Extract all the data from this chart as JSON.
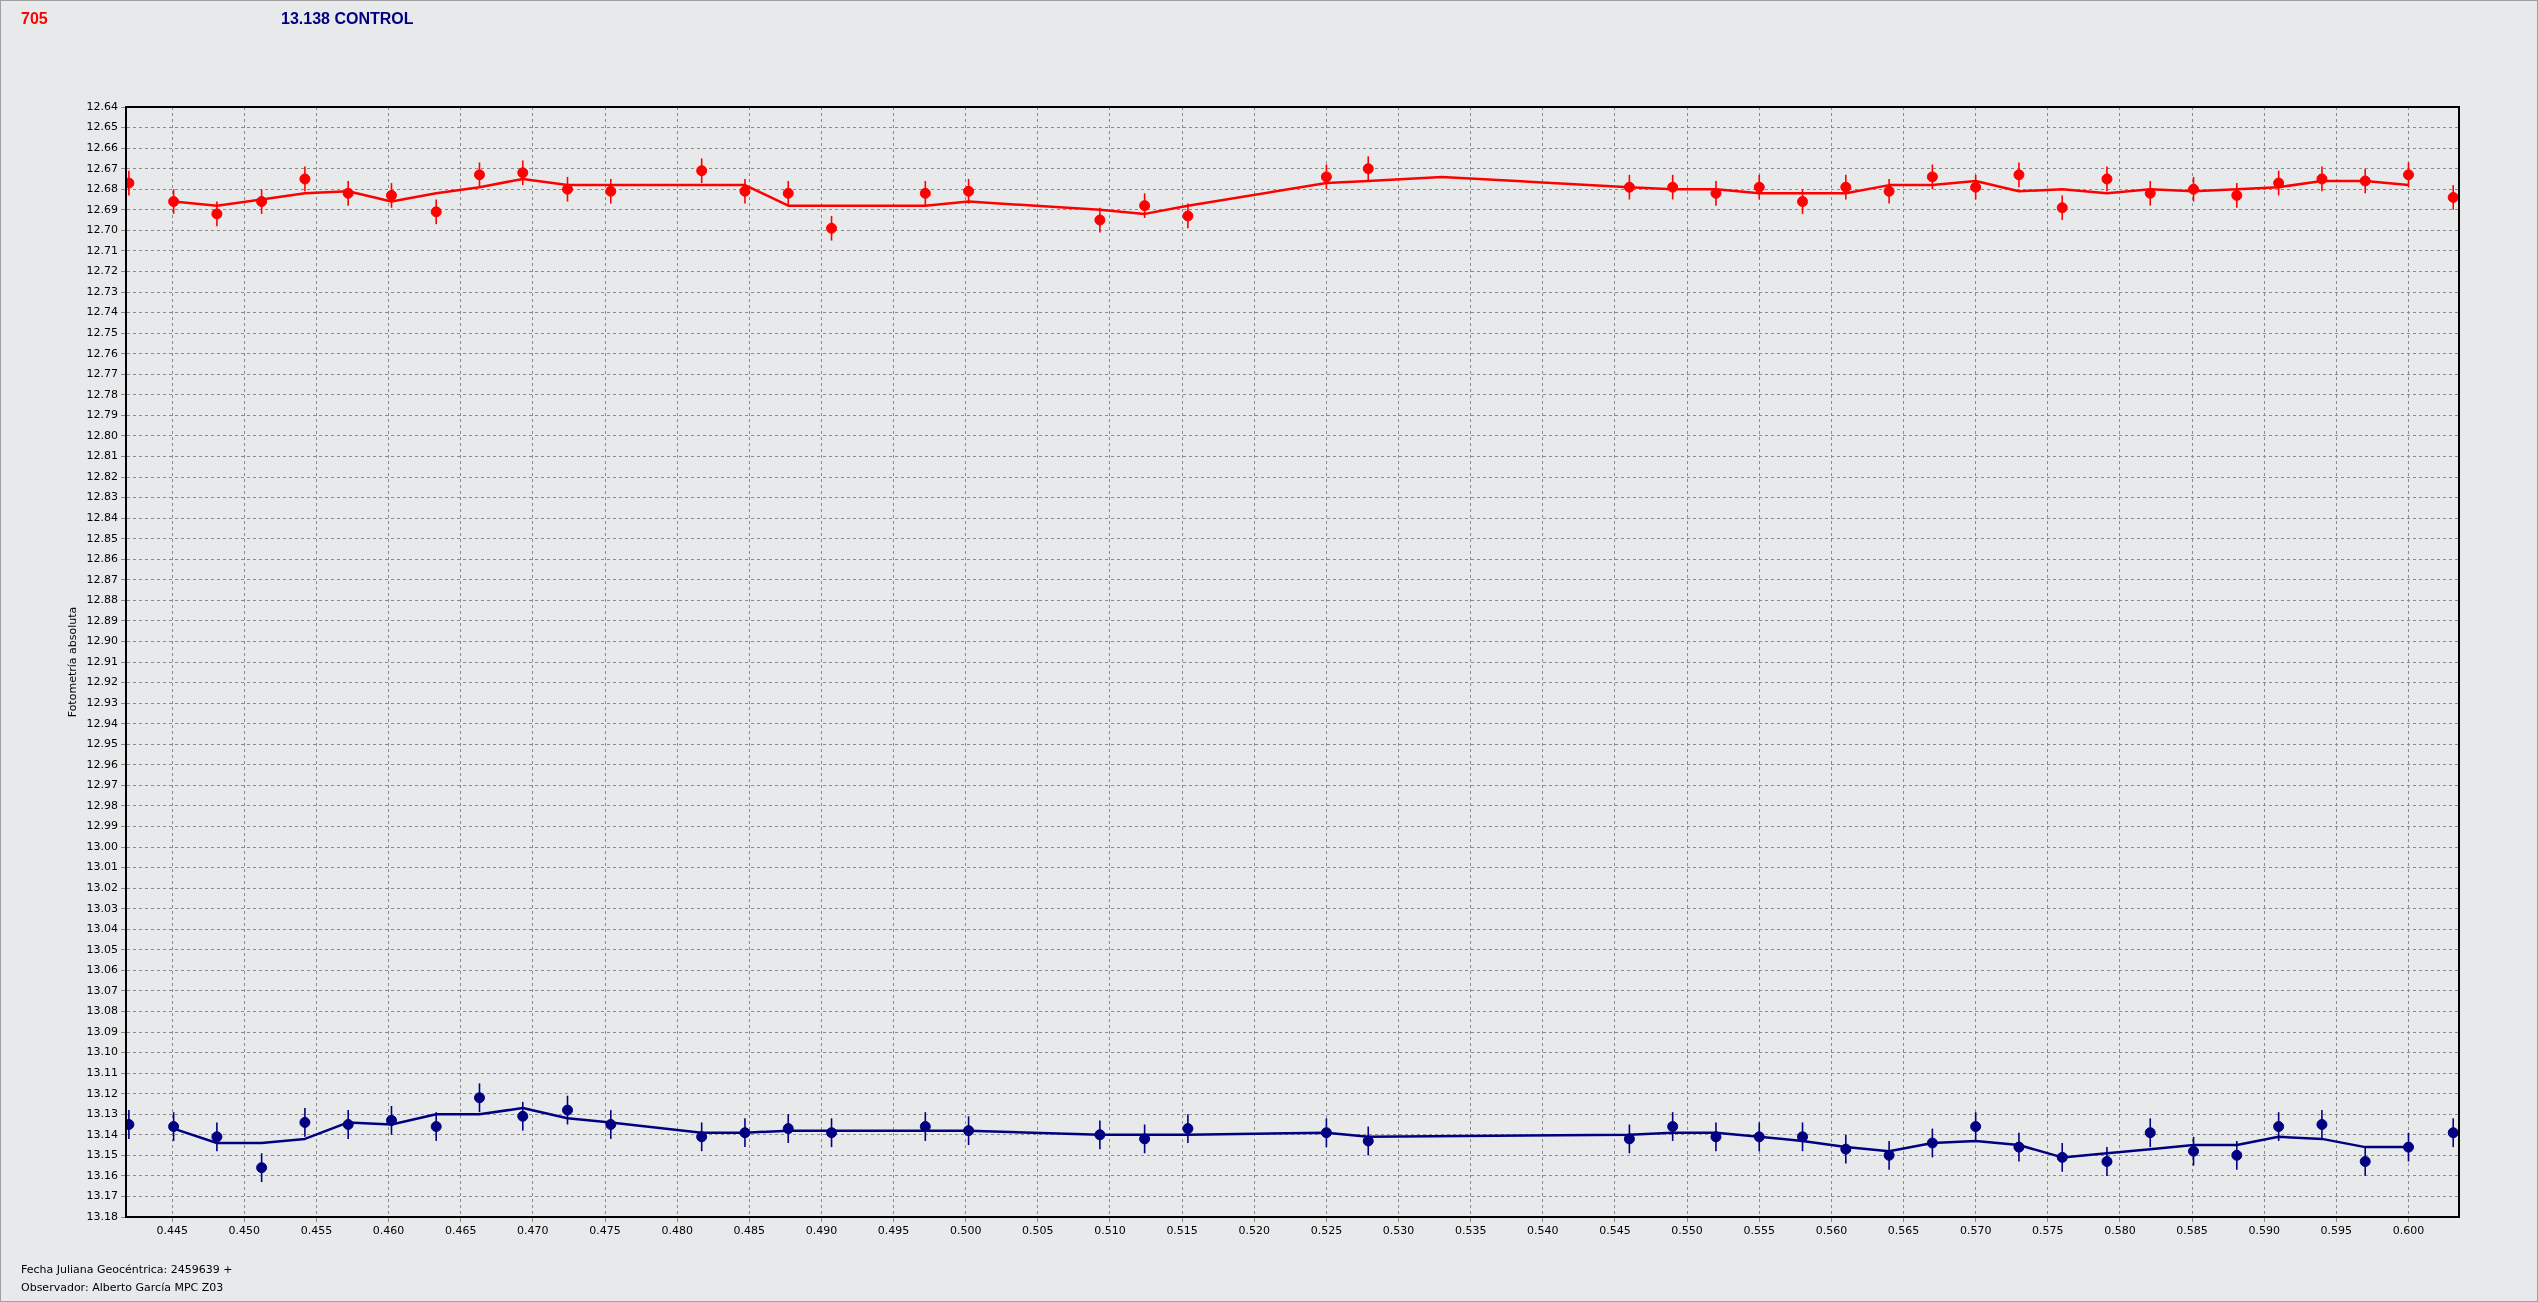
{
  "chart_data": {
    "type": "scatter",
    "ylabel": "Fotometría absoluta",
    "annotations": [
      "Fecha Juliana Geocéntrica: 2459639 +",
      "Observador: Alberto García MPC Z03"
    ],
    "xlim": [
      0.4418,
      0.6035
    ],
    "ylim": [
      13.18,
      12.64
    ],
    "xticks": [
      0.445,
      {
        "value": 0.45,
        "label": "0.450"
      },
      0.455,
      {
        "value": 0.46,
        "label": "0.460"
      },
      0.465,
      {
        "value": 0.47,
        "label": "0.470"
      },
      0.475,
      {
        "value": 0.48,
        "label": "0.480"
      },
      0.485,
      {
        "value": 0.49,
        "label": "0.490"
      },
      0.495,
      {
        "value": 0.5,
        "label": "0.500"
      },
      0.505,
      {
        "value": 0.51,
        "label": "0.510"
      },
      0.515,
      {
        "value": 0.52,
        "label": "0.520"
      },
      0.525,
      {
        "value": 0.53,
        "label": "0.530"
      },
      0.535,
      {
        "value": 0.54,
        "label": "0.540"
      },
      0.545,
      {
        "value": 0.55,
        "label": "0.550"
      },
      0.555,
      {
        "value": 0.56,
        "label": "0.560"
      },
      0.565,
      {
        "value": 0.57,
        "label": "0.570"
      },
      0.575,
      {
        "value": 0.58,
        "label": "0.580"
      },
      0.585,
      {
        "value": 0.59,
        "label": "0.590"
      },
      0.595,
      {
        "value": 0.6,
        "label": "0.600"
      }
    ],
    "yticks": [
      12.64,
      12.65,
      12.66,
      12.67,
      12.68,
      12.69,
      {
        "value": 12.7,
        "label": "12.70"
      },
      12.71,
      12.72,
      12.73,
      12.74,
      12.75,
      12.76,
      12.77,
      12.78,
      12.79,
      {
        "value": 12.8,
        "label": "12.80"
      },
      12.81,
      12.82,
      12.83,
      12.84,
      12.85,
      12.86,
      12.87,
      12.88,
      12.89,
      {
        "value": 12.9,
        "label": "12.90"
      },
      12.91,
      12.92,
      12.93,
      12.94,
      12.95,
      12.96,
      12.97,
      12.98,
      12.99,
      {
        "value": 13,
        "label": "13.00"
      },
      13.01,
      13.02,
      13.03,
      13.04,
      13.05,
      13.06,
      13.07,
      13.08,
      13.09,
      {
        "value": 13.1,
        "label": "13.10"
      },
      13.11,
      13.12,
      13.13,
      13.14,
      13.15,
      13.16,
      13.17,
      13.18
    ],
    "grid": true,
    "legend": false,
    "marker": "circle",
    "series": [
      {
        "type": "scatter",
        "name": "705",
        "color": "#ff0000",
        "x": [
          0.442,
          0.4451,
          0.4481,
          0.4512,
          0.4542,
          0.4572,
          0.4602,
          0.4633,
          0.4663,
          0.4693,
          0.4724,
          0.4754,
          0.4817,
          0.4847,
          0.4877,
          0.4907,
          0.4972,
          0.5002,
          0.5093,
          0.5124,
          0.5154,
          0.525,
          0.5279,
          0.546,
          0.549,
          0.552,
          0.555,
          0.558,
          0.561,
          0.564,
          0.567,
          0.57,
          0.573,
          0.576,
          0.5791,
          0.5821,
          0.5851,
          0.5881,
          0.591,
          0.594,
          0.597,
          0.6,
          0.6031
        ],
        "values": [
          12.677,
          12.686,
          12.692,
          12.686,
          12.675,
          12.682,
          12.683,
          12.691,
          12.673,
          12.672,
          12.68,
          12.681,
          12.671,
          12.681,
          12.682,
          12.699,
          12.682,
          12.681,
          12.695,
          12.688,
          12.693,
          12.674,
          12.67,
          12.679,
          12.679,
          12.682,
          12.679,
          12.686,
          12.679,
          12.681,
          12.674,
          12.679,
          12.673,
          12.689,
          12.675,
          12.682,
          12.68,
          12.683,
          12.677,
          12.675,
          12.676,
          12.673,
          12.684
        ],
        "errors": [
          0.006,
          0.006,
          0.006,
          0.006,
          0.006,
          0.006,
          0.006,
          0.006,
          0.006,
          0.006,
          0.006,
          0.006,
          0.006,
          0.006,
          0.006,
          0.006,
          0.006,
          0.006,
          0.006,
          0.006,
          0.006,
          0.006,
          0.006,
          0.006,
          0.006,
          0.006,
          0.006,
          0.006,
          0.006,
          0.006,
          0.006,
          0.006,
          0.006,
          0.006,
          0.006,
          0.006,
          0.006,
          0.006,
          0.006,
          0.006,
          0.006,
          0.006,
          0.006
        ]
      },
      {
        "type": "line",
        "color": "#ff0000",
        "marker": "none",
        "x": [
          0.4451,
          0.4481,
          0.4512,
          0.4542,
          0.4572,
          0.4602,
          0.4633,
          0.4663,
          0.4693,
          0.4724,
          0.4754,
          0.4817,
          0.4847,
          0.4877,
          0.4907,
          0.4972,
          0.5002,
          0.5093,
          0.5124,
          0.5154,
          0.525,
          0.5279,
          0.533,
          0.546,
          0.549,
          0.552,
          0.555,
          0.558,
          0.561,
          0.564,
          0.567,
          0.57,
          0.573,
          0.576,
          0.5791,
          0.5821,
          0.5851,
          0.5881,
          0.591,
          0.594,
          0.597,
          0.6
        ],
        "values": [
          12.686,
          12.688,
          12.685,
          12.682,
          12.681,
          12.686,
          12.682,
          12.679,
          12.675,
          12.678,
          12.678,
          12.678,
          12.678,
          12.688,
          12.688,
          12.688,
          12.686,
          12.69,
          12.692,
          12.688,
          12.677,
          12.676,
          12.674,
          12.679,
          12.68,
          12.68,
          12.682,
          12.682,
          12.682,
          12.678,
          12.678,
          12.676,
          12.681,
          12.68,
          12.682,
          12.68,
          12.681,
          12.68,
          12.679,
          12.676,
          12.676,
          12.678
        ]
      },
      {
        "type": "scatter",
        "name": "13.138 CONTROL",
        "color": "#000080",
        "x": [
          0.442,
          0.4451,
          0.4481,
          0.4512,
          0.4542,
          0.4572,
          0.4602,
          0.4633,
          0.4663,
          0.4693,
          0.4724,
          0.4754,
          0.4817,
          0.4847,
          0.4877,
          0.4907,
          0.4972,
          0.5002,
          0.5093,
          0.5124,
          0.5154,
          0.525,
          0.5279,
          0.546,
          0.549,
          0.552,
          0.555,
          0.558,
          0.561,
          0.564,
          0.567,
          0.57,
          0.573,
          0.576,
          0.5791,
          0.5821,
          0.5851,
          0.5881,
          0.591,
          0.594,
          0.597,
          0.6,
          0.6031
        ],
        "values": [
          13.135,
          13.136,
          13.141,
          13.156,
          13.134,
          13.135,
          13.133,
          13.136,
          13.122,
          13.131,
          13.128,
          13.135,
          13.141,
          13.139,
          13.137,
          13.139,
          13.136,
          13.138,
          13.14,
          13.142,
          13.137,
          13.139,
          13.143,
          13.142,
          13.136,
          13.141,
          13.141,
          13.141,
          13.147,
          13.15,
          13.144,
          13.136,
          13.146,
          13.151,
          13.153,
          13.139,
          13.148,
          13.15,
          13.136,
          13.135,
          13.153,
          13.146,
          13.139
        ],
        "errors": [
          0.007,
          0.007,
          0.007,
          0.007,
          0.007,
          0.007,
          0.007,
          0.007,
          0.007,
          0.007,
          0.007,
          0.007,
          0.007,
          0.007,
          0.007,
          0.007,
          0.007,
          0.007,
          0.007,
          0.007,
          0.007,
          0.007,
          0.007,
          0.007,
          0.007,
          0.007,
          0.007,
          0.007,
          0.007,
          0.007,
          0.007,
          0.007,
          0.007,
          0.007,
          0.007,
          0.007,
          0.007,
          0.007,
          0.007,
          0.007,
          0.007,
          0.007,
          0.007
        ]
      },
      {
        "type": "line",
        "color": "#000080",
        "marker": "none",
        "x": [
          0.4451,
          0.4481,
          0.4512,
          0.4542,
          0.4572,
          0.4602,
          0.4633,
          0.4663,
          0.4693,
          0.4724,
          0.4754,
          0.4817,
          0.4847,
          0.4877,
          0.4907,
          0.4972,
          0.5002,
          0.5093,
          0.5124,
          0.5154,
          0.525,
          0.5279,
          0.546,
          0.549,
          0.552,
          0.555,
          0.558,
          0.561,
          0.564,
          0.567,
          0.57,
          0.573,
          0.576,
          0.5791,
          0.5821,
          0.5851,
          0.5881,
          0.591,
          0.594,
          0.597,
          0.6
        ],
        "values": [
          13.137,
          13.144,
          13.144,
          13.142,
          13.134,
          13.135,
          13.13,
          13.13,
          13.127,
          13.132,
          13.134,
          13.139,
          13.139,
          13.138,
          13.138,
          13.138,
          13.138,
          13.14,
          13.14,
          13.14,
          13.139,
          13.141,
          13.14,
          13.139,
          13.139,
          13.141,
          13.143,
          13.146,
          13.148,
          13.144,
          13.143,
          13.145,
          13.151,
          13.149,
          13.147,
          13.145,
          13.145,
          13.141,
          13.142,
          13.146,
          13.146
        ]
      }
    ]
  }
}
